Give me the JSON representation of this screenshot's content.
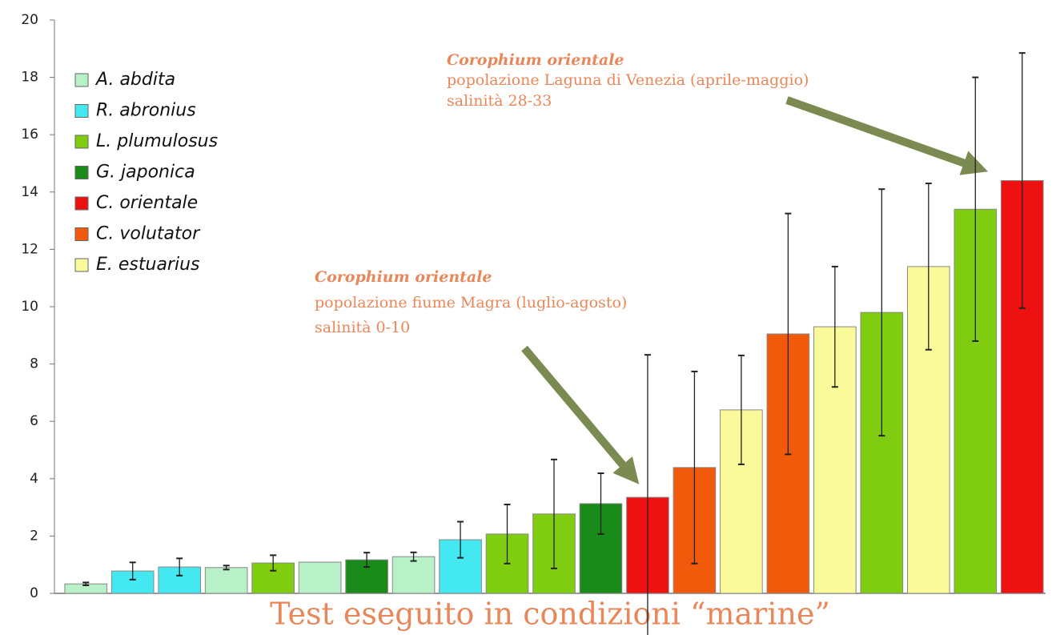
{
  "chart_data": {
    "type": "bar",
    "categories": [
      null,
      null,
      null,
      null,
      null,
      null,
      null,
      null,
      null,
      null,
      null,
      null,
      null,
      null,
      null,
      null,
      null,
      null,
      null,
      null,
      null
    ],
    "ylim": [
      0,
      20
    ],
    "yticks": [
      0,
      2,
      4,
      6,
      8,
      10,
      12,
      14,
      16,
      18,
      20
    ],
    "grid": false,
    "legend": "upper left",
    "series": [
      {
        "name": "A. abdita",
        "color": "#b8f0c8",
        "values": [
          0.33,
          null,
          null,
          0.9,
          null,
          1.09,
          null,
          1.28,
          null,
          null,
          null,
          null,
          null,
          null,
          null,
          null,
          null,
          null,
          null,
          null,
          null
        ],
        "errors": [
          0.05,
          null,
          null,
          0.07,
          null,
          null,
          null,
          0.15,
          null,
          null,
          null,
          null,
          null,
          null,
          null,
          null,
          null,
          null,
          null,
          null,
          null
        ]
      },
      {
        "name": "R. abronius",
        "color": "#44e8f0",
        "values": [
          null,
          0.78,
          0.92,
          null,
          null,
          null,
          null,
          null,
          1.87,
          null,
          null,
          null,
          null,
          null,
          null,
          null,
          null,
          null,
          null,
          null,
          null
        ],
        "errors": [
          null,
          0.3,
          0.3,
          null,
          null,
          null,
          null,
          null,
          0.63,
          null,
          null,
          null,
          null,
          null,
          null,
          null,
          null,
          null,
          null,
          null,
          null
        ]
      },
      {
        "name": "L. plumulosus",
        "color": "#80cc10",
        "values": [
          null,
          null,
          null,
          null,
          1.06,
          null,
          null,
          null,
          null,
          2.07,
          2.77,
          null,
          null,
          null,
          null,
          null,
          null,
          9.8,
          null,
          13.4,
          null
        ],
        "errors": [
          null,
          null,
          null,
          null,
          0.27,
          null,
          null,
          null,
          null,
          1.03,
          1.9,
          null,
          null,
          null,
          null,
          null,
          null,
          4.3,
          null,
          4.6,
          null
        ]
      },
      {
        "name": "G. japonica",
        "color": "#1a8a1a",
        "values": [
          null,
          null,
          null,
          null,
          null,
          null,
          1.17,
          null,
          null,
          null,
          null,
          3.13,
          null,
          null,
          null,
          null,
          null,
          null,
          null,
          null,
          null
        ],
        "errors": [
          null,
          null,
          null,
          null,
          null,
          null,
          0.25,
          null,
          null,
          null,
          null,
          1.06,
          null,
          null,
          null,
          null,
          null,
          null,
          null,
          null,
          null
        ]
      },
      {
        "name": "C. orientale",
        "color": "#ee1111",
        "values": [
          null,
          null,
          null,
          null,
          null,
          null,
          null,
          null,
          null,
          null,
          null,
          null,
          3.35,
          null,
          null,
          null,
          null,
          null,
          null,
          null,
          14.4
        ],
        "errors": [
          null,
          null,
          null,
          null,
          null,
          null,
          null,
          null,
          null,
          null,
          null,
          null,
          4.97,
          null,
          null,
          null,
          null,
          null,
          null,
          null,
          4.45
        ]
      },
      {
        "name": "C. volutator",
        "color": "#f05a0a",
        "values": [
          null,
          null,
          null,
          null,
          null,
          null,
          null,
          null,
          null,
          null,
          null,
          null,
          null,
          4.39,
          null,
          9.05,
          null,
          null,
          null,
          null,
          null
        ],
        "errors": [
          null,
          null,
          null,
          null,
          null,
          null,
          null,
          null,
          null,
          null,
          null,
          null,
          null,
          3.35,
          null,
          4.2,
          null,
          null,
          null,
          null,
          null
        ]
      },
      {
        "name": "E. estuarius",
        "color": "#fafa9a",
        "values": [
          null,
          null,
          null,
          null,
          null,
          null,
          null,
          null,
          null,
          null,
          null,
          null,
          null,
          null,
          6.4,
          null,
          9.3,
          null,
          11.4,
          null,
          null
        ],
        "errors": [
          null,
          null,
          null,
          null,
          null,
          null,
          null,
          null,
          null,
          null,
          null,
          null,
          null,
          null,
          1.9,
          null,
          2.1,
          null,
          2.9,
          null,
          null
        ]
      }
    ],
    "annotations": [
      {
        "title": "Corophium orientale",
        "lines": [
          "popolazione Laguna di Venezia (aprile-maggio)",
          "salinità 28-33"
        ]
      },
      {
        "title": "Corophium orientale",
        "lines": [
          "popolazione fiume Magra (luglio-agosto)",
          "salinità 0-10"
        ]
      }
    ],
    "caption": "Test eseguito in condizioni “marine”"
  }
}
